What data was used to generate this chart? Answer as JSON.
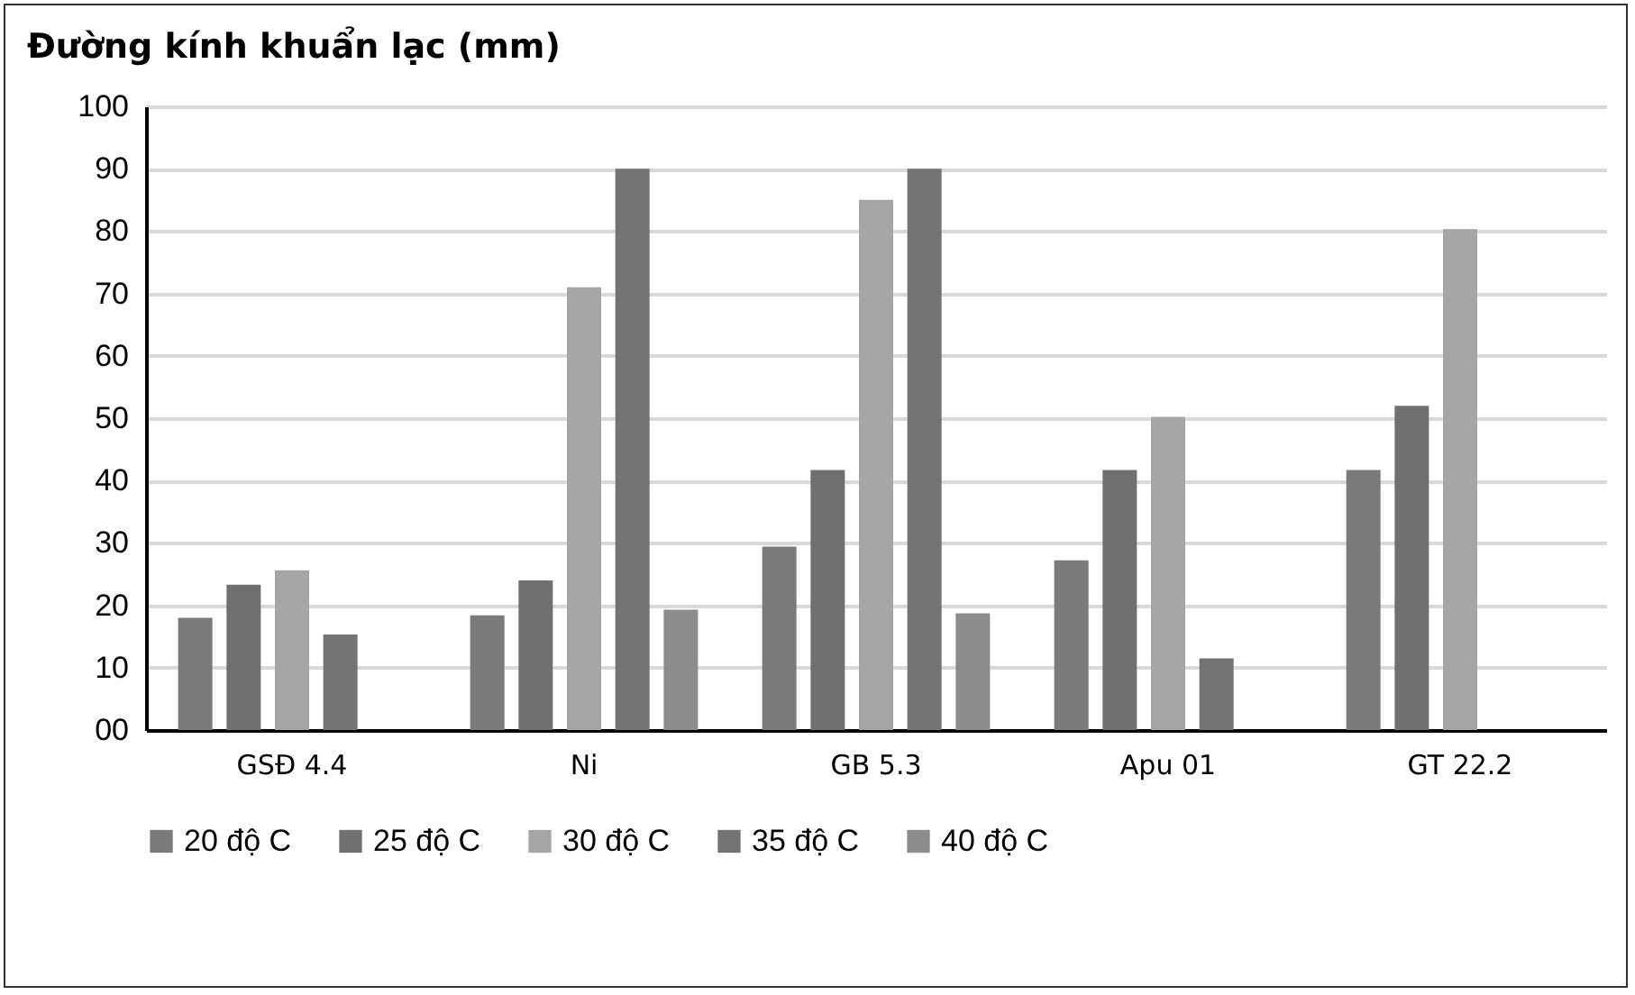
{
  "chart_data": {
    "type": "bar",
    "title": "Đường kính khuẩn lạc (mm)",
    "categories": [
      "GSĐ 4.4",
      "Ni",
      "GB 5.3",
      "Apu 01",
      "GT 22.2"
    ],
    "series": [
      {
        "name": "20 độ C",
        "color": "#7a7a7a",
        "values": [
          18,
          18.4,
          29.4,
          27.2,
          41.7
        ]
      },
      {
        "name": "25 độ C",
        "color": "#707070",
        "values": [
          23.3,
          24,
          41.7,
          41.7,
          52
        ]
      },
      {
        "name": "30 độ C",
        "color": "#a5a5a5",
        "values": [
          25.6,
          71,
          85,
          50.2,
          80.3
        ]
      },
      {
        "name": "35 độ C",
        "color": "#737373",
        "values": [
          15.3,
          90,
          90,
          11.5,
          null
        ]
      },
      {
        "name": "40 độ C",
        "color": "#8c8c8c",
        "values": [
          null,
          19.3,
          18.7,
          null,
          null
        ]
      }
    ],
    "ylim": [
      0,
      100
    ],
    "yticks": [
      {
        "value": 0,
        "label": "00"
      },
      10,
      20,
      30,
      40,
      50,
      60,
      70,
      80,
      90,
      100
    ],
    "grid": "y",
    "legend": "bottom"
  }
}
